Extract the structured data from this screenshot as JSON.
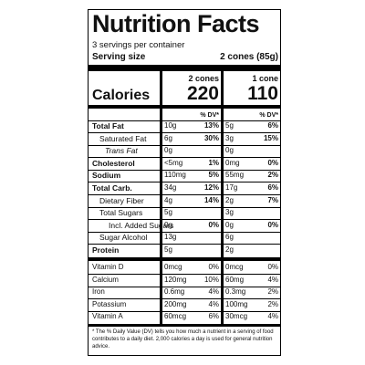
{
  "title": "Nutrition Facts",
  "servings": "3 servings per container",
  "serving_size": {
    "label": "Serving size",
    "value": "2 cones (85g)"
  },
  "columns": [
    "2 cones",
    "1 cone"
  ],
  "calories": {
    "label": "Calories",
    "values": [
      220,
      110
    ]
  },
  "dv_header": [
    "% DV*",
    "% DV*"
  ],
  "nutrients": [
    {
      "name": "Total Fat",
      "amounts": [
        "10g",
        "5g"
      ],
      "dv": [
        "13%",
        "6%"
      ]
    },
    {
      "name": "Saturated Fat",
      "amounts": [
        "6g",
        "3g"
      ],
      "dv": [
        "30%",
        "15%"
      ]
    },
    {
      "name": "Trans Fat",
      "amounts": [
        "0g",
        "0g"
      ],
      "dv": [
        null,
        null
      ]
    },
    {
      "name": "Cholesterol",
      "amounts": [
        "<5mg",
        "0mg"
      ],
      "dv": [
        "1%",
        "0%"
      ]
    },
    {
      "name": "Sodium",
      "amounts": [
        "110mg",
        "55mg"
      ],
      "dv": [
        "5%",
        "2%"
      ]
    },
    {
      "name": "Total Carb.",
      "amounts": [
        "34g",
        "17g"
      ],
      "dv": [
        "12%",
        "6%"
      ]
    },
    {
      "name": "Dietary Fiber",
      "amounts": [
        "4g",
        "2g"
      ],
      "dv": [
        "14%",
        "7%"
      ]
    },
    {
      "name": "Total Sugars",
      "amounts": [
        "5g",
        "3g"
      ],
      "dv": [
        null,
        null
      ]
    },
    {
      "name": "Incl. Added Sugars",
      "amounts": [
        "0g",
        "0g"
      ],
      "dv": [
        "0%",
        "0%"
      ]
    },
    {
      "name": "Sugar Alcohol",
      "amounts": [
        "13g",
        "6g"
      ],
      "dv": [
        null,
        null
      ]
    },
    {
      "name": "Protein",
      "amounts": [
        "5g",
        "2g"
      ],
      "dv": [
        null,
        null
      ]
    }
  ],
  "vitamins": [
    {
      "name": "Vitamin D",
      "amounts": [
        "0mcg",
        "0mcg"
      ],
      "dv": [
        "0%",
        "0%"
      ]
    },
    {
      "name": "Calcium",
      "amounts": [
        "120mg",
        "60mg"
      ],
      "dv": [
        "10%",
        "4%"
      ]
    },
    {
      "name": "Iron",
      "amounts": [
        "0.6mg",
        "0.3mg"
      ],
      "dv": [
        "4%",
        "2%"
      ]
    },
    {
      "name": "Potassium",
      "amounts": [
        "200mg",
        "100mg"
      ],
      "dv": [
        "4%",
        "2%"
      ]
    },
    {
      "name": "Vitamin A",
      "amounts": [
        "60mcg",
        "30mcg"
      ],
      "dv": [
        "6%",
        "4%"
      ]
    }
  ],
  "footnote": "* The % Daily Value (DV) tells you how much a nutrient in a serving of food contributes to a daily diet. 2,000 calories a day is used for general nutrition advice."
}
